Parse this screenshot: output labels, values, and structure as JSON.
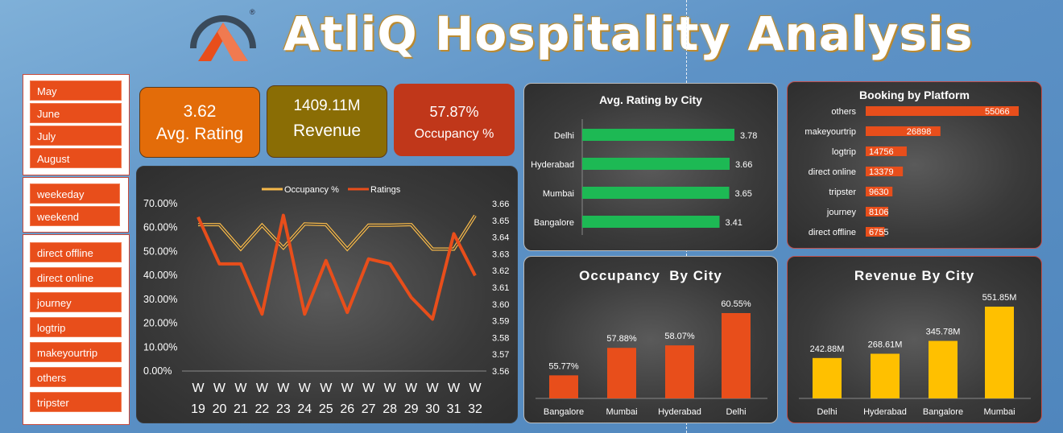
{
  "header": {
    "title": "AtliQ Hospitality Analysis",
    "logo_mark": "®"
  },
  "slicers": {
    "months": [
      "May",
      "June",
      "July",
      "August"
    ],
    "day_types": [
      "weekeday",
      "weekend"
    ],
    "platforms": [
      "direct offline",
      "direct online",
      "journey",
      "logtrip",
      "makeyourtrip",
      "others",
      "tripster"
    ]
  },
  "kpis": [
    {
      "value": "3.62",
      "label": "Avg. Rating",
      "color": "#e36c09"
    },
    {
      "value": "1409.11M",
      "label": "Revenue",
      "color": "#8a6d05"
    },
    {
      "value": "57.87%",
      "label": "Occupancy %",
      "color": "#c0371a"
    }
  ],
  "chart_data": [
    {
      "type": "line",
      "legend": [
        "Occupancy %",
        "Ratings"
      ],
      "categories": [
        "W 19",
        "W 20",
        "W 21",
        "W 22",
        "W 23",
        "W 24",
        "W 25",
        "W 26",
        "W 27",
        "W 28",
        "W 29",
        "W 30",
        "W 31",
        "W 32"
      ],
      "series": [
        {
          "name": "Occupancy %",
          "axis": "left",
          "values": [
            61.2,
            61.2,
            51.0,
            61.0,
            51.5,
            61.5,
            61.2,
            51.0,
            61.0,
            61.0,
            61.2,
            51.0,
            51.0,
            65.0
          ]
        },
        {
          "name": "Ratings",
          "axis": "right",
          "values": [
            3.652,
            3.624,
            3.624,
            3.594,
            3.653,
            3.594,
            3.626,
            3.595,
            3.627,
            3.624,
            3.604,
            3.591,
            3.642,
            3.617
          ]
        }
      ],
      "y_left": {
        "min": 0,
        "max": 70,
        "ticks": [
          "0.00%",
          "10.00%",
          "20.00%",
          "30.00%",
          "40.00%",
          "50.00%",
          "60.00%",
          "70.00%"
        ]
      },
      "y_right": {
        "min": 3.56,
        "max": 3.66,
        "ticks": [
          "3.56",
          "3.57",
          "3.58",
          "3.59",
          "3.60",
          "3.61",
          "3.62",
          "3.63",
          "3.64",
          "3.65",
          "3.66"
        ]
      }
    },
    {
      "type": "bar",
      "orientation": "horizontal",
      "title": "Avg. Rating by City",
      "categories": [
        "Delhi",
        "Hyderabad",
        "Mumbai",
        "Bangalore"
      ],
      "values": [
        3.78,
        3.66,
        3.65,
        3.41
      ],
      "labels": [
        "3.78",
        "3.66",
        "3.65",
        "3.41"
      ],
      "color": "#1db954"
    },
    {
      "type": "bar",
      "orientation": "horizontal",
      "title": "Booking by Platform",
      "categories": [
        "others",
        "makeyourtrip",
        "logtrip",
        "direct online",
        "tripster",
        "journey",
        "direct offline"
      ],
      "values": [
        55066,
        26898,
        14756,
        13379,
        9630,
        8106,
        6755
      ],
      "labels": [
        "55066",
        "26898",
        "14756",
        "13379",
        "9630",
        "8106",
        "6755"
      ],
      "color": "#e84e1b"
    },
    {
      "type": "bar",
      "orientation": "vertical",
      "title": "Occupancy  By City",
      "categories": [
        "Bangalore",
        "Mumbai",
        "Hyderabad",
        "Delhi"
      ],
      "values": [
        55.77,
        57.88,
        58.07,
        60.55
      ],
      "labels": [
        "55.77%",
        "57.88%",
        "58.07%",
        "60.55%"
      ],
      "color": "#e84e1b"
    },
    {
      "type": "bar",
      "orientation": "vertical",
      "title": "Revenue By City",
      "categories": [
        "Delhi",
        "Hyderabad",
        "Bangalore",
        "Mumbai"
      ],
      "values": [
        242.88,
        268.61,
        345.78,
        551.85
      ],
      "labels": [
        "242.88M",
        "268.61M",
        "345.78M",
        "551.85M"
      ],
      "color": "#ffc000"
    }
  ]
}
